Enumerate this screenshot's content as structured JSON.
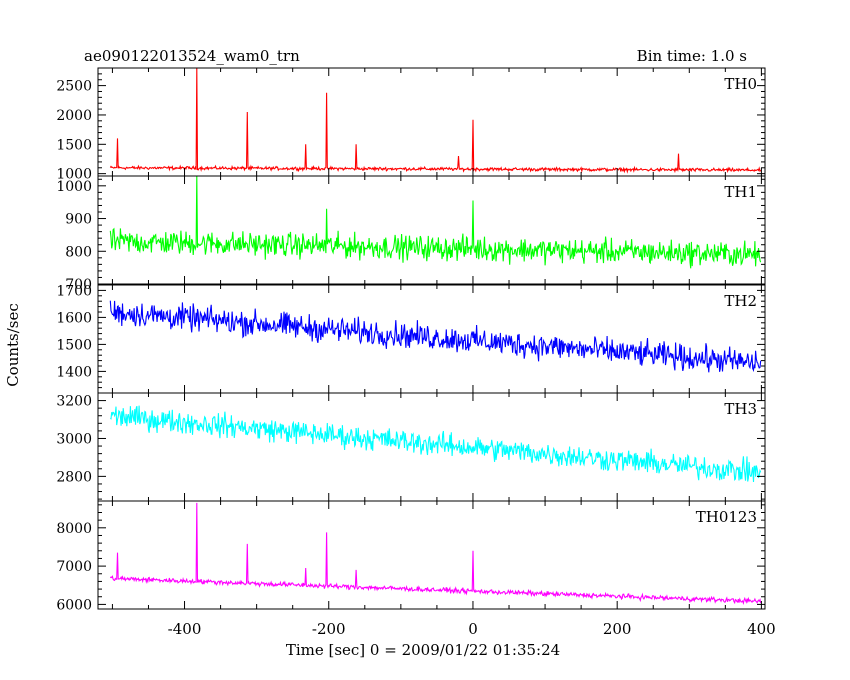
{
  "chart_data": {
    "type": "line",
    "title": "ae090122013524_wam0_trn",
    "subtitle": "Bin time: 1.0 s",
    "xlabel": "Time [sec] 0 = 2009/01/22 01:35:24",
    "ylabel": "Counts/sec",
    "xlim": [
      -520,
      405
    ],
    "x_ticks": [
      -400,
      -200,
      0,
      200,
      400
    ],
    "grid": false,
    "panels": [
      {
        "name": "TH0",
        "color": "#ff0000",
        "ylim": [
          960,
          2800
        ],
        "y_ticks": [
          1000,
          1500,
          2000,
          2500
        ],
        "baseline_start": 1100,
        "baseline_end": 1060,
        "noise": 40,
        "spikes": [
          {
            "x": -493,
            "y": 1600
          },
          {
            "x": -383,
            "y": 2800
          },
          {
            "x": -313,
            "y": 2050
          },
          {
            "x": -232,
            "y": 1500
          },
          {
            "x": -203,
            "y": 2380
          },
          {
            "x": -162,
            "y": 1500
          },
          {
            "x": -20,
            "y": 1300
          },
          {
            "x": 0,
            "y": 1920
          },
          {
            "x": 285,
            "y": 1340
          }
        ]
      },
      {
        "name": "TH1",
        "color": "#00ff00",
        "ylim": [
          700,
          1030
        ],
        "y_ticks": [
          700,
          800,
          900,
          1000
        ],
        "baseline_start": 830,
        "baseline_end": 790,
        "noise": 55,
        "spikes": [
          {
            "x": -383,
            "y": 1030
          },
          {
            "x": -203,
            "y": 930
          },
          {
            "x": 0,
            "y": 955
          }
        ]
      },
      {
        "name": "TH2",
        "color": "#0000ff",
        "ylim": [
          1320,
          1720
        ],
        "y_ticks": [
          1400,
          1500,
          1600,
          1700
        ],
        "baseline_start": 1620,
        "baseline_end": 1430,
        "noise": 70,
        "spikes": []
      },
      {
        "name": "TH3",
        "color": "#00ffff",
        "ylim": [
          2670,
          3240
        ],
        "y_ticks": [
          2800,
          3000,
          3200
        ],
        "baseline_start": 3120,
        "baseline_end": 2820,
        "noise": 90,
        "spikes": []
      },
      {
        "name": "TH0123",
        "color": "#ff00ff",
        "ylim": [
          5880,
          8700
        ],
        "y_ticks": [
          6000,
          7000,
          8000
        ],
        "baseline_start": 6680,
        "baseline_end": 6080,
        "noise": 90,
        "spikes": [
          {
            "x": -493,
            "y": 7350
          },
          {
            "x": -383,
            "y": 8650
          },
          {
            "x": -313,
            "y": 7580
          },
          {
            "x": -232,
            "y": 6950
          },
          {
            "x": -203,
            "y": 7880
          },
          {
            "x": -162,
            "y": 6900
          },
          {
            "x": 0,
            "y": 7400
          }
        ]
      }
    ]
  }
}
